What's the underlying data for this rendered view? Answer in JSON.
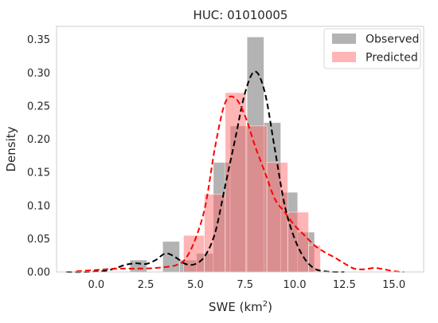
{
  "chart_data": {
    "type": "histogram",
    "title": "HUC: 01010005",
    "xlabel_base": "SWE (km",
    "xlabel_sup": "2",
    "xlabel_tail": ")",
    "ylabel": "Density",
    "xlim": [
      -2.0,
      16.5
    ],
    "ylim": [
      0.0,
      0.37
    ],
    "xticks": [
      0.0,
      2.5,
      5.0,
      7.5,
      10.0,
      12.5,
      15.0
    ],
    "xtick_labels": [
      "0.0",
      "2.5",
      "5.0",
      "7.5",
      "10.0",
      "12.5",
      "15.0"
    ],
    "yticks": [
      0.0,
      0.05,
      0.1,
      0.15,
      0.2,
      0.25,
      0.3,
      0.35
    ],
    "ytick_labels": [
      "0.00",
      "0.05",
      "0.10",
      "0.15",
      "0.20",
      "0.25",
      "0.30",
      "0.35"
    ],
    "grid": false,
    "legend_position": "top-right",
    "series": [
      {
        "name": "Observed",
        "kind": "histogram",
        "color": "#808080",
        "opacity": 0.6,
        "bins": [
          {
            "x0": 1.7,
            "x1": 2.55,
            "density": 0.018
          },
          {
            "x0": 3.35,
            "x1": 4.2,
            "density": 0.046
          },
          {
            "x0": 4.2,
            "x1": 5.05,
            "density": 0.018
          },
          {
            "x0": 5.05,
            "x1": 5.9,
            "density": 0.028
          },
          {
            "x0": 5.9,
            "x1": 6.75,
            "density": 0.165
          },
          {
            "x0": 6.75,
            "x1": 7.6,
            "density": 0.22
          },
          {
            "x0": 7.6,
            "x1": 8.45,
            "density": 0.354
          },
          {
            "x0": 8.45,
            "x1": 9.3,
            "density": 0.225
          },
          {
            "x0": 9.3,
            "x1": 10.15,
            "density": 0.12
          },
          {
            "x0": 10.15,
            "x1": 11.0,
            "density": 0.06
          }
        ],
        "kde": {
          "color": "#000000",
          "x": [
            -1.5,
            -0.5,
            0.5,
            1.0,
            1.5,
            2.0,
            2.5,
            3.0,
            3.5,
            4.0,
            4.5,
            5.0,
            5.5,
            6.0,
            6.5,
            7.0,
            7.5,
            8.0,
            8.5,
            9.0,
            9.5,
            10.0,
            10.5,
            11.0,
            11.5,
            12.0,
            12.5
          ],
          "y": [
            0.0,
            0.0,
            0.002,
            0.006,
            0.011,
            0.013,
            0.012,
            0.018,
            0.028,
            0.022,
            0.012,
            0.012,
            0.025,
            0.06,
            0.13,
            0.2,
            0.27,
            0.302,
            0.27,
            0.185,
            0.1,
            0.05,
            0.02,
            0.005,
            0.001,
            0.0,
            0.0
          ]
        }
      },
      {
        "name": "Predicted",
        "kind": "histogram",
        "color": "#ff6b6b",
        "opacity": 0.5,
        "bins": [
          {
            "x0": 4.4,
            "x1": 5.45,
            "density": 0.055
          },
          {
            "x0": 5.45,
            "x1": 6.5,
            "density": 0.117
          },
          {
            "x0": 6.5,
            "x1": 7.55,
            "density": 0.27
          },
          {
            "x0": 7.55,
            "x1": 8.6,
            "density": 0.22
          },
          {
            "x0": 8.6,
            "x1": 9.65,
            "density": 0.165
          },
          {
            "x0": 9.65,
            "x1": 10.7,
            "density": 0.09
          },
          {
            "x0": 10.7,
            "x1": 11.3,
            "density": 0.04
          }
        ],
        "kde": {
          "color": "#ff0000",
          "x": [
            -1.0,
            0.0,
            1.0,
            2.0,
            3.0,
            4.0,
            4.5,
            5.0,
            5.5,
            6.0,
            6.5,
            7.0,
            7.5,
            8.0,
            8.5,
            9.0,
            9.5,
            10.0,
            10.5,
            11.0,
            11.5,
            12.0,
            12.5,
            13.0,
            13.5,
            14.0,
            14.5,
            15.0,
            15.5
          ],
          "y": [
            0.001,
            0.003,
            0.005,
            0.005,
            0.006,
            0.01,
            0.02,
            0.05,
            0.1,
            0.19,
            0.255,
            0.262,
            0.235,
            0.19,
            0.15,
            0.11,
            0.09,
            0.07,
            0.055,
            0.04,
            0.03,
            0.022,
            0.013,
            0.005,
            0.004,
            0.006,
            0.004,
            0.001,
            0.0
          ]
        }
      }
    ]
  }
}
